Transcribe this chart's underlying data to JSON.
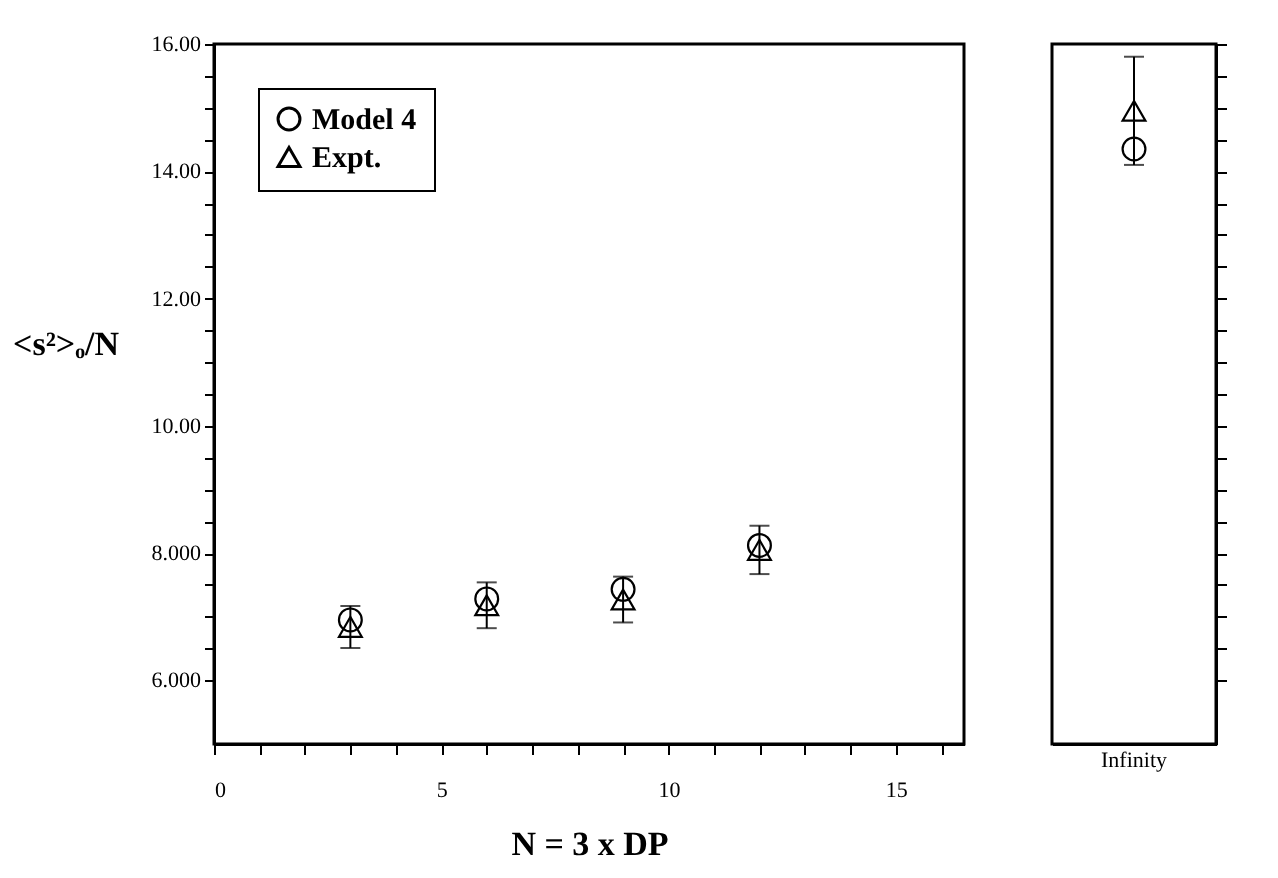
{
  "chart_data": [
    {
      "type": "scatter",
      "xlabel": "N = 3 x DP",
      "ylabel": "<s²>ₒ/N",
      "x": [
        3,
        6,
        9,
        12
      ],
      "xlim": [
        0,
        16.5
      ],
      "xticks": [
        0,
        {
          "value": 1,
          "label": null
        },
        {
          "value": 2,
          "label": null
        },
        {
          "value": 3,
          "label": null
        },
        {
          "value": 4,
          "label": null
        },
        5,
        {
          "value": 6,
          "label": null
        },
        {
          "value": 7,
          "label": null
        },
        {
          "value": 8,
          "label": null
        },
        {
          "value": 9,
          "label": null
        },
        10,
        {
          "value": 11,
          "label": null
        },
        {
          "value": 12,
          "label": null
        },
        {
          "value": 13,
          "label": null
        },
        {
          "value": 14,
          "label": null
        },
        15,
        {
          "value": 16,
          "label": null
        }
      ],
      "ylim": [
        5,
        16
      ],
      "yticks": [
        {
          "value": 6,
          "label": "6.000"
        },
        {
          "value": 6.5,
          "label": null
        },
        {
          "value": 7,
          "label": null
        },
        {
          "value": 7.5,
          "label": null
        },
        {
          "value": 8,
          "label": "8.000"
        },
        {
          "value": 8.5,
          "label": null
        },
        {
          "value": 9,
          "label": null
        },
        {
          "value": 9.5,
          "label": null
        },
        {
          "value": 10,
          "label": "10.00"
        },
        {
          "value": 10.5,
          "label": null
        },
        {
          "value": 11,
          "label": null
        },
        {
          "value": 11.5,
          "label": null
        },
        {
          "value": 12,
          "label": "12.00"
        },
        {
          "value": 12.5,
          "label": null
        },
        {
          "value": 13,
          "label": null
        },
        {
          "value": 13.5,
          "label": null
        },
        {
          "value": 14,
          "label": "14.00"
        },
        {
          "value": 14.5,
          "label": null
        },
        {
          "value": 15,
          "label": null
        },
        {
          "value": 15.5,
          "label": null
        },
        {
          "value": 16,
          "label": "16.00"
        }
      ],
      "grid": false,
      "legend": "top left",
      "series": [
        {
          "name": "Model 4",
          "color": "#000000",
          "marker": "circle",
          "values": [
            6.95,
            7.28,
            7.43,
            8.12
          ]
        },
        {
          "name": "Expt.",
          "color": "#000000",
          "marker": "triangle",
          "values": [
            6.84,
            7.18,
            7.27,
            8.05
          ],
          "errors": [
            0.33,
            0.36,
            0.36,
            0.38
          ]
        }
      ]
    },
    {
      "type": "scatter",
      "categories": [
        "Infinity"
      ],
      "ylim": [
        5,
        16
      ],
      "tick_labels": "x",
      "grid": false,
      "legend": false,
      "yticks": [
        {
          "value": 6,
          "label": null
        },
        {
          "value": 6.5,
          "label": null
        },
        {
          "value": 7,
          "label": null
        },
        {
          "value": 7.5,
          "label": null
        },
        {
          "value": 8,
          "label": null
        },
        {
          "value": 8.5,
          "label": null
        },
        {
          "value": 9,
          "label": null
        },
        {
          "value": 9.5,
          "label": null
        },
        {
          "value": 10,
          "label": null
        },
        {
          "value": 10.5,
          "label": null
        },
        {
          "value": 11,
          "label": null
        },
        {
          "value": 11.5,
          "label": null
        },
        {
          "value": 12,
          "label": null
        },
        {
          "value": 12.5,
          "label": null
        },
        {
          "value": 13,
          "label": null
        },
        {
          "value": 13.5,
          "label": null
        },
        {
          "value": 14,
          "label": null
        },
        {
          "value": 14.5,
          "label": null
        },
        {
          "value": 15,
          "label": null
        },
        {
          "value": 15.5,
          "label": null
        },
        {
          "value": 16,
          "label": null
        }
      ],
      "series": [
        {
          "color": "#000000",
          "marker": "circle",
          "values": [
            14.35
          ]
        },
        {
          "color": "#000000",
          "marker": "triangle",
          "values": [
            14.95
          ],
          "errors": [
            0.85
          ]
        }
      ]
    }
  ]
}
